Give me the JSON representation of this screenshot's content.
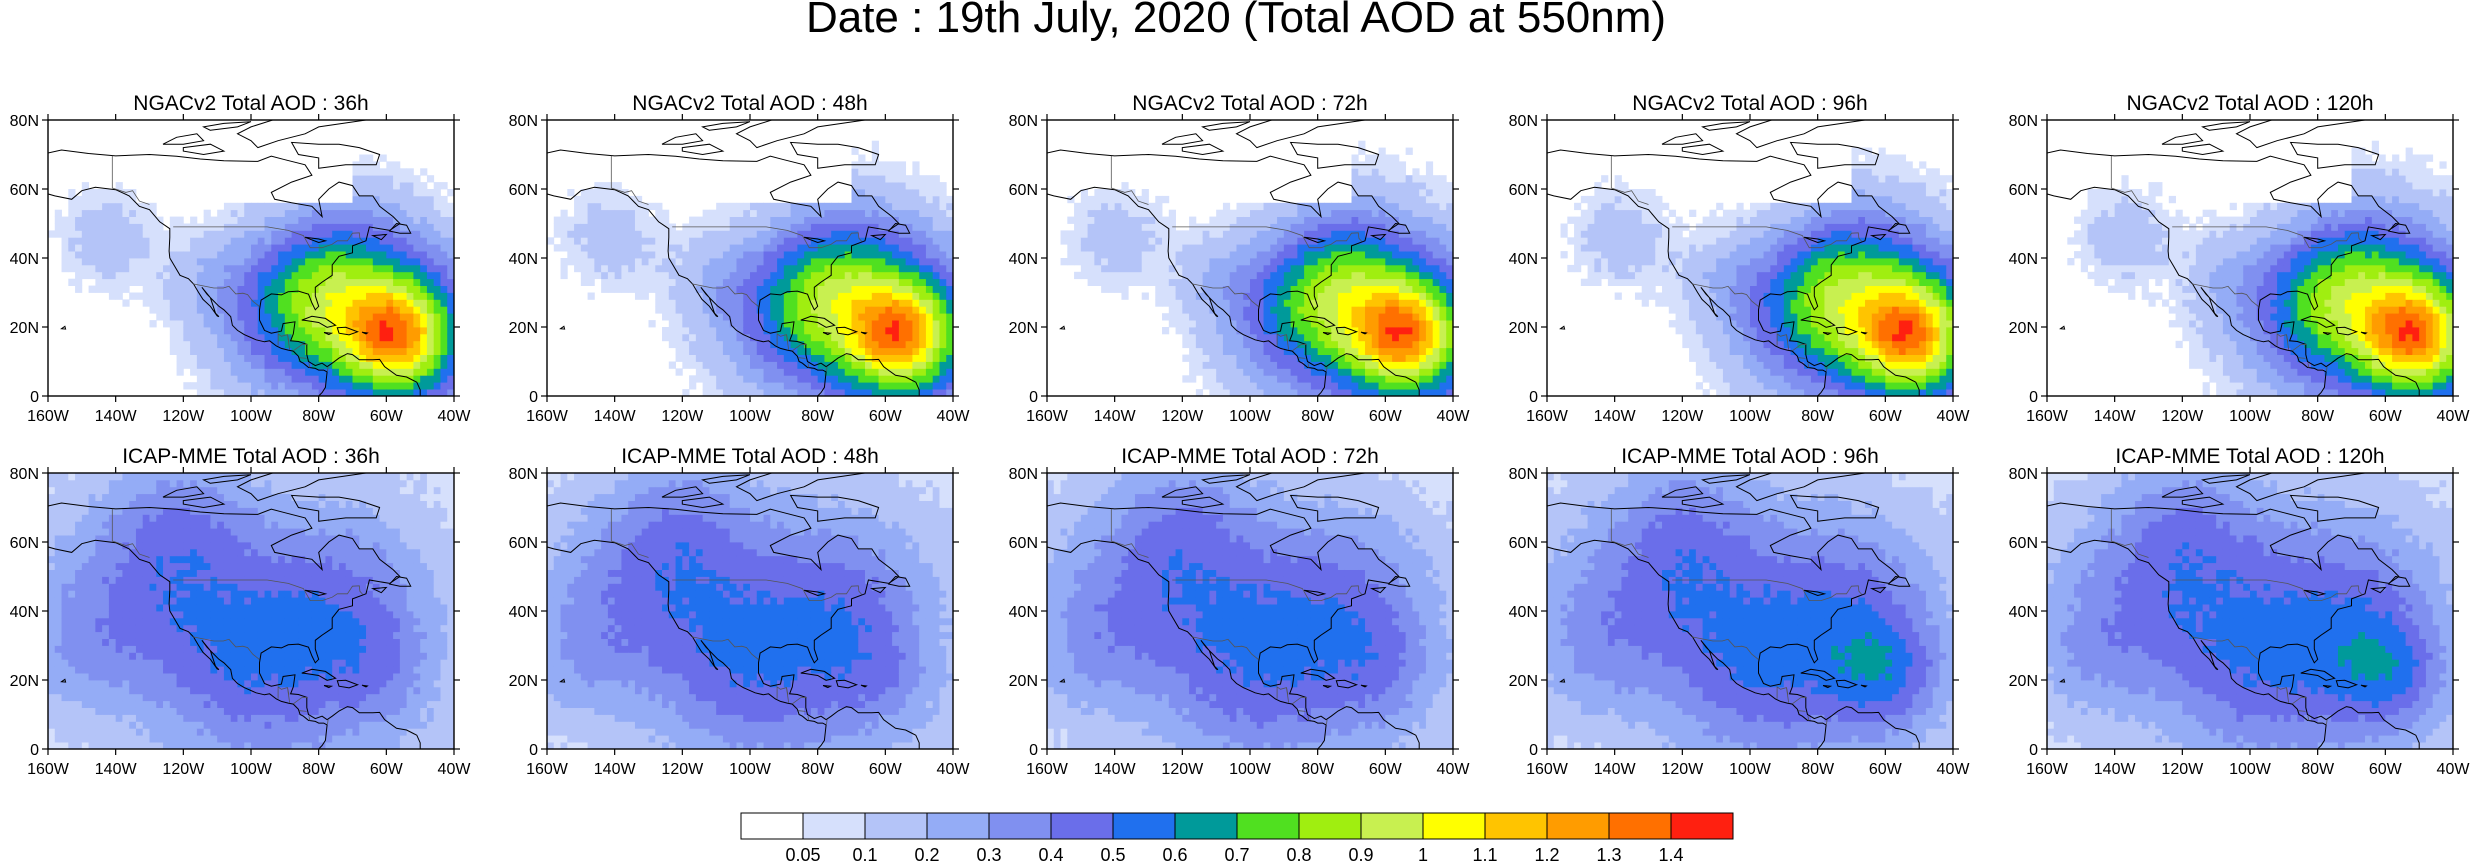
{
  "title": "Date : 19th July, 2020 (Total AOD at 550nm)",
  "panels": [
    {
      "row": 0,
      "col": 0,
      "title": "NGACv2 Total AOD : 36h",
      "model": "ngac"
    },
    {
      "row": 0,
      "col": 1,
      "title": "NGACv2 Total AOD : 48h",
      "model": "ngac"
    },
    {
      "row": 0,
      "col": 2,
      "title": "NGACv2 Total AOD : 72h",
      "model": "ngac"
    },
    {
      "row": 0,
      "col": 3,
      "title": "NGACv2 Total AOD : 96h",
      "model": "ngac"
    },
    {
      "row": 0,
      "col": 4,
      "title": "NGACv2 Total AOD : 120h",
      "model": "ngac"
    },
    {
      "row": 1,
      "col": 0,
      "title": "ICAP-MME Total AOD : 36h",
      "model": "icap"
    },
    {
      "row": 1,
      "col": 1,
      "title": "ICAP-MME Total AOD : 48h",
      "model": "icap"
    },
    {
      "row": 1,
      "col": 2,
      "title": "ICAP-MME Total AOD : 72h",
      "model": "icap"
    },
    {
      "row": 1,
      "col": 3,
      "title": "ICAP-MME Total AOD : 96h",
      "model": "icap"
    },
    {
      "row": 1,
      "col": 4,
      "title": "ICAP-MME Total AOD : 120h",
      "model": "icap"
    }
  ],
  "axes": {
    "lon_range": [
      -160,
      -40
    ],
    "lat_range": [
      0,
      80
    ],
    "lon_ticks": [
      "160W",
      "140W",
      "120W",
      "100W",
      "80W",
      "60W",
      "40W"
    ],
    "lat_ticks": [
      "0",
      "20N",
      "40N",
      "60N",
      "80N"
    ]
  },
  "colorbar": {
    "labels": [
      "0.05",
      "0.1",
      "0.2",
      "0.3",
      "0.4",
      "0.5",
      "0.6",
      "0.7",
      "0.8",
      "0.9",
      "1",
      "1.1",
      "1.2",
      "1.3",
      "1.4"
    ],
    "colors": [
      "#ffffff",
      "#d6e0fc",
      "#b4c4f8",
      "#94acf6",
      "#8090f0",
      "#6a6eea",
      "#2070ee",
      "#009a9a",
      "#50e020",
      "#a0ee10",
      "#c8f050",
      "#ffff00",
      "#ffc400",
      "#ff9c00",
      "#ff7000",
      "#ff2010"
    ]
  }
}
